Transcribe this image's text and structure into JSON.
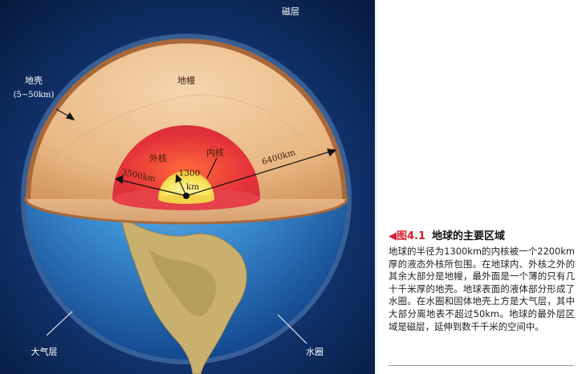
{
  "figure": {
    "labels": {
      "magnetosphere": "磁层",
      "crust": "地壳",
      "crust_thickness": "(5~50km)",
      "mantle": "地幔",
      "outer_core": "外核",
      "inner_core": "内核",
      "radius_earth": "6400km",
      "radius_outer_core": "3500km",
      "radius_inner_core_value": "1300",
      "radius_inner_core_unit": "km",
      "atmosphere": "大气层",
      "hydrosphere": "水圈"
    },
    "colors": {
      "space": "#0a1f4a",
      "ocean": "#2e7fc9",
      "mantle": "#e8b481",
      "crust": "#a8683a",
      "outer_core": "#e0303a",
      "inner_core": "#f7e35a",
      "land": "#c8b070"
    }
  },
  "caption": {
    "marker": "◀",
    "number": "图4.1",
    "title": "地球的主要区域",
    "text": "地球的半径为1300km的内核被一个2200km厚的液态外核所包围。在地球内、外核之外的其余大部分是地幔，最外面是一个薄的只有几十千米厚的地壳。地球表面的液体部分形成了水圈。在水圈和固体地壳上方是大气层，其中大部分离地表不超过50km。地球的最外层区域是磁层，延伸到数千千米的空间中。"
  }
}
